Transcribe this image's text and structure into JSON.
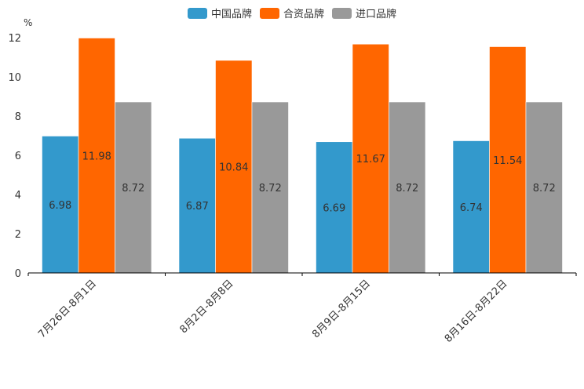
{
  "chart_data": {
    "type": "bar",
    "title": "",
    "xlabel": "",
    "ylabel": "%",
    "ylim": [
      0,
      12
    ],
    "yticks": [
      0,
      2,
      4,
      6,
      8,
      10,
      12
    ],
    "categories": [
      "7月26日-8月1日",
      "8月2日-8月8日",
      "8月9日-8月15日",
      "8月16日-8月22日"
    ],
    "series": [
      {
        "name": "中国品牌",
        "color": "#3399cc",
        "values": [
          6.98,
          6.87,
          6.69,
          6.74
        ]
      },
      {
        "name": "合资品牌",
        "color": "#ff6600",
        "values": [
          11.98,
          10.84,
          11.67,
          11.54
        ]
      },
      {
        "name": "进口品牌",
        "color": "#999999",
        "values": [
          8.72,
          8.72,
          8.72,
          8.72
        ]
      }
    ],
    "legend_position": "top-center",
    "grid": false
  }
}
